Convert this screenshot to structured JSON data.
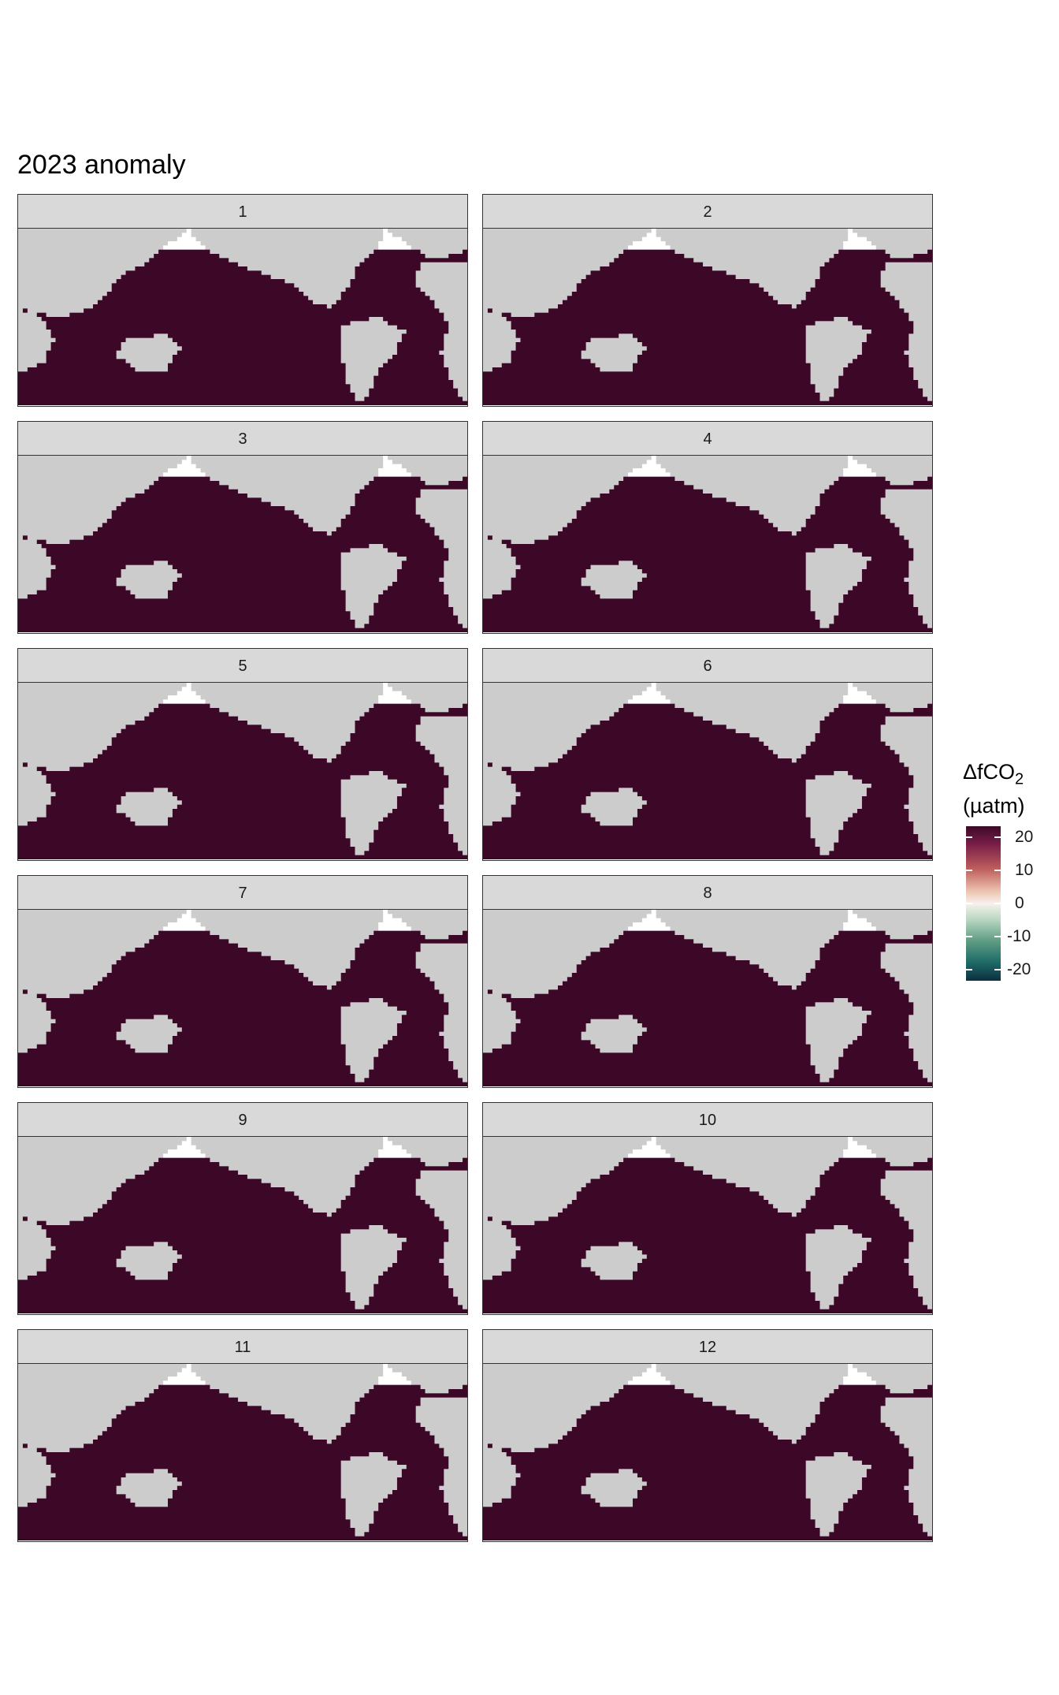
{
  "title": "2023 anomaly",
  "legend": {
    "title_main": "ΔfCO",
    "title_sub": "2",
    "title_unit": "(µatm)",
    "ticks": [
      "20",
      "10",
      "0",
      "-10",
      "-20"
    ],
    "range": [
      -20,
      20
    ],
    "colors": {
      "high": "#4a0a32",
      "mid_high": "#c96a6a",
      "mid": "#f5f0ea",
      "mid_low": "#6aa88a",
      "low": "#0b3d4a",
      "land": "#cccccc"
    }
  },
  "chart_data": {
    "type": "heatmap",
    "description_units": "ΔfCO2 (µatm)",
    "panels": [
      {
        "label": "1"
      },
      {
        "label": "2"
      },
      {
        "label": "3"
      },
      {
        "label": "4"
      },
      {
        "label": "5"
      },
      {
        "label": "6"
      },
      {
        "label": "7"
      },
      {
        "label": "8"
      },
      {
        "label": "9"
      },
      {
        "label": "10"
      },
      {
        "label": "11"
      },
      {
        "label": "12"
      }
    ],
    "color_scale": {
      "min": -20,
      "max": 20,
      "midpoint": 0
    }
  }
}
